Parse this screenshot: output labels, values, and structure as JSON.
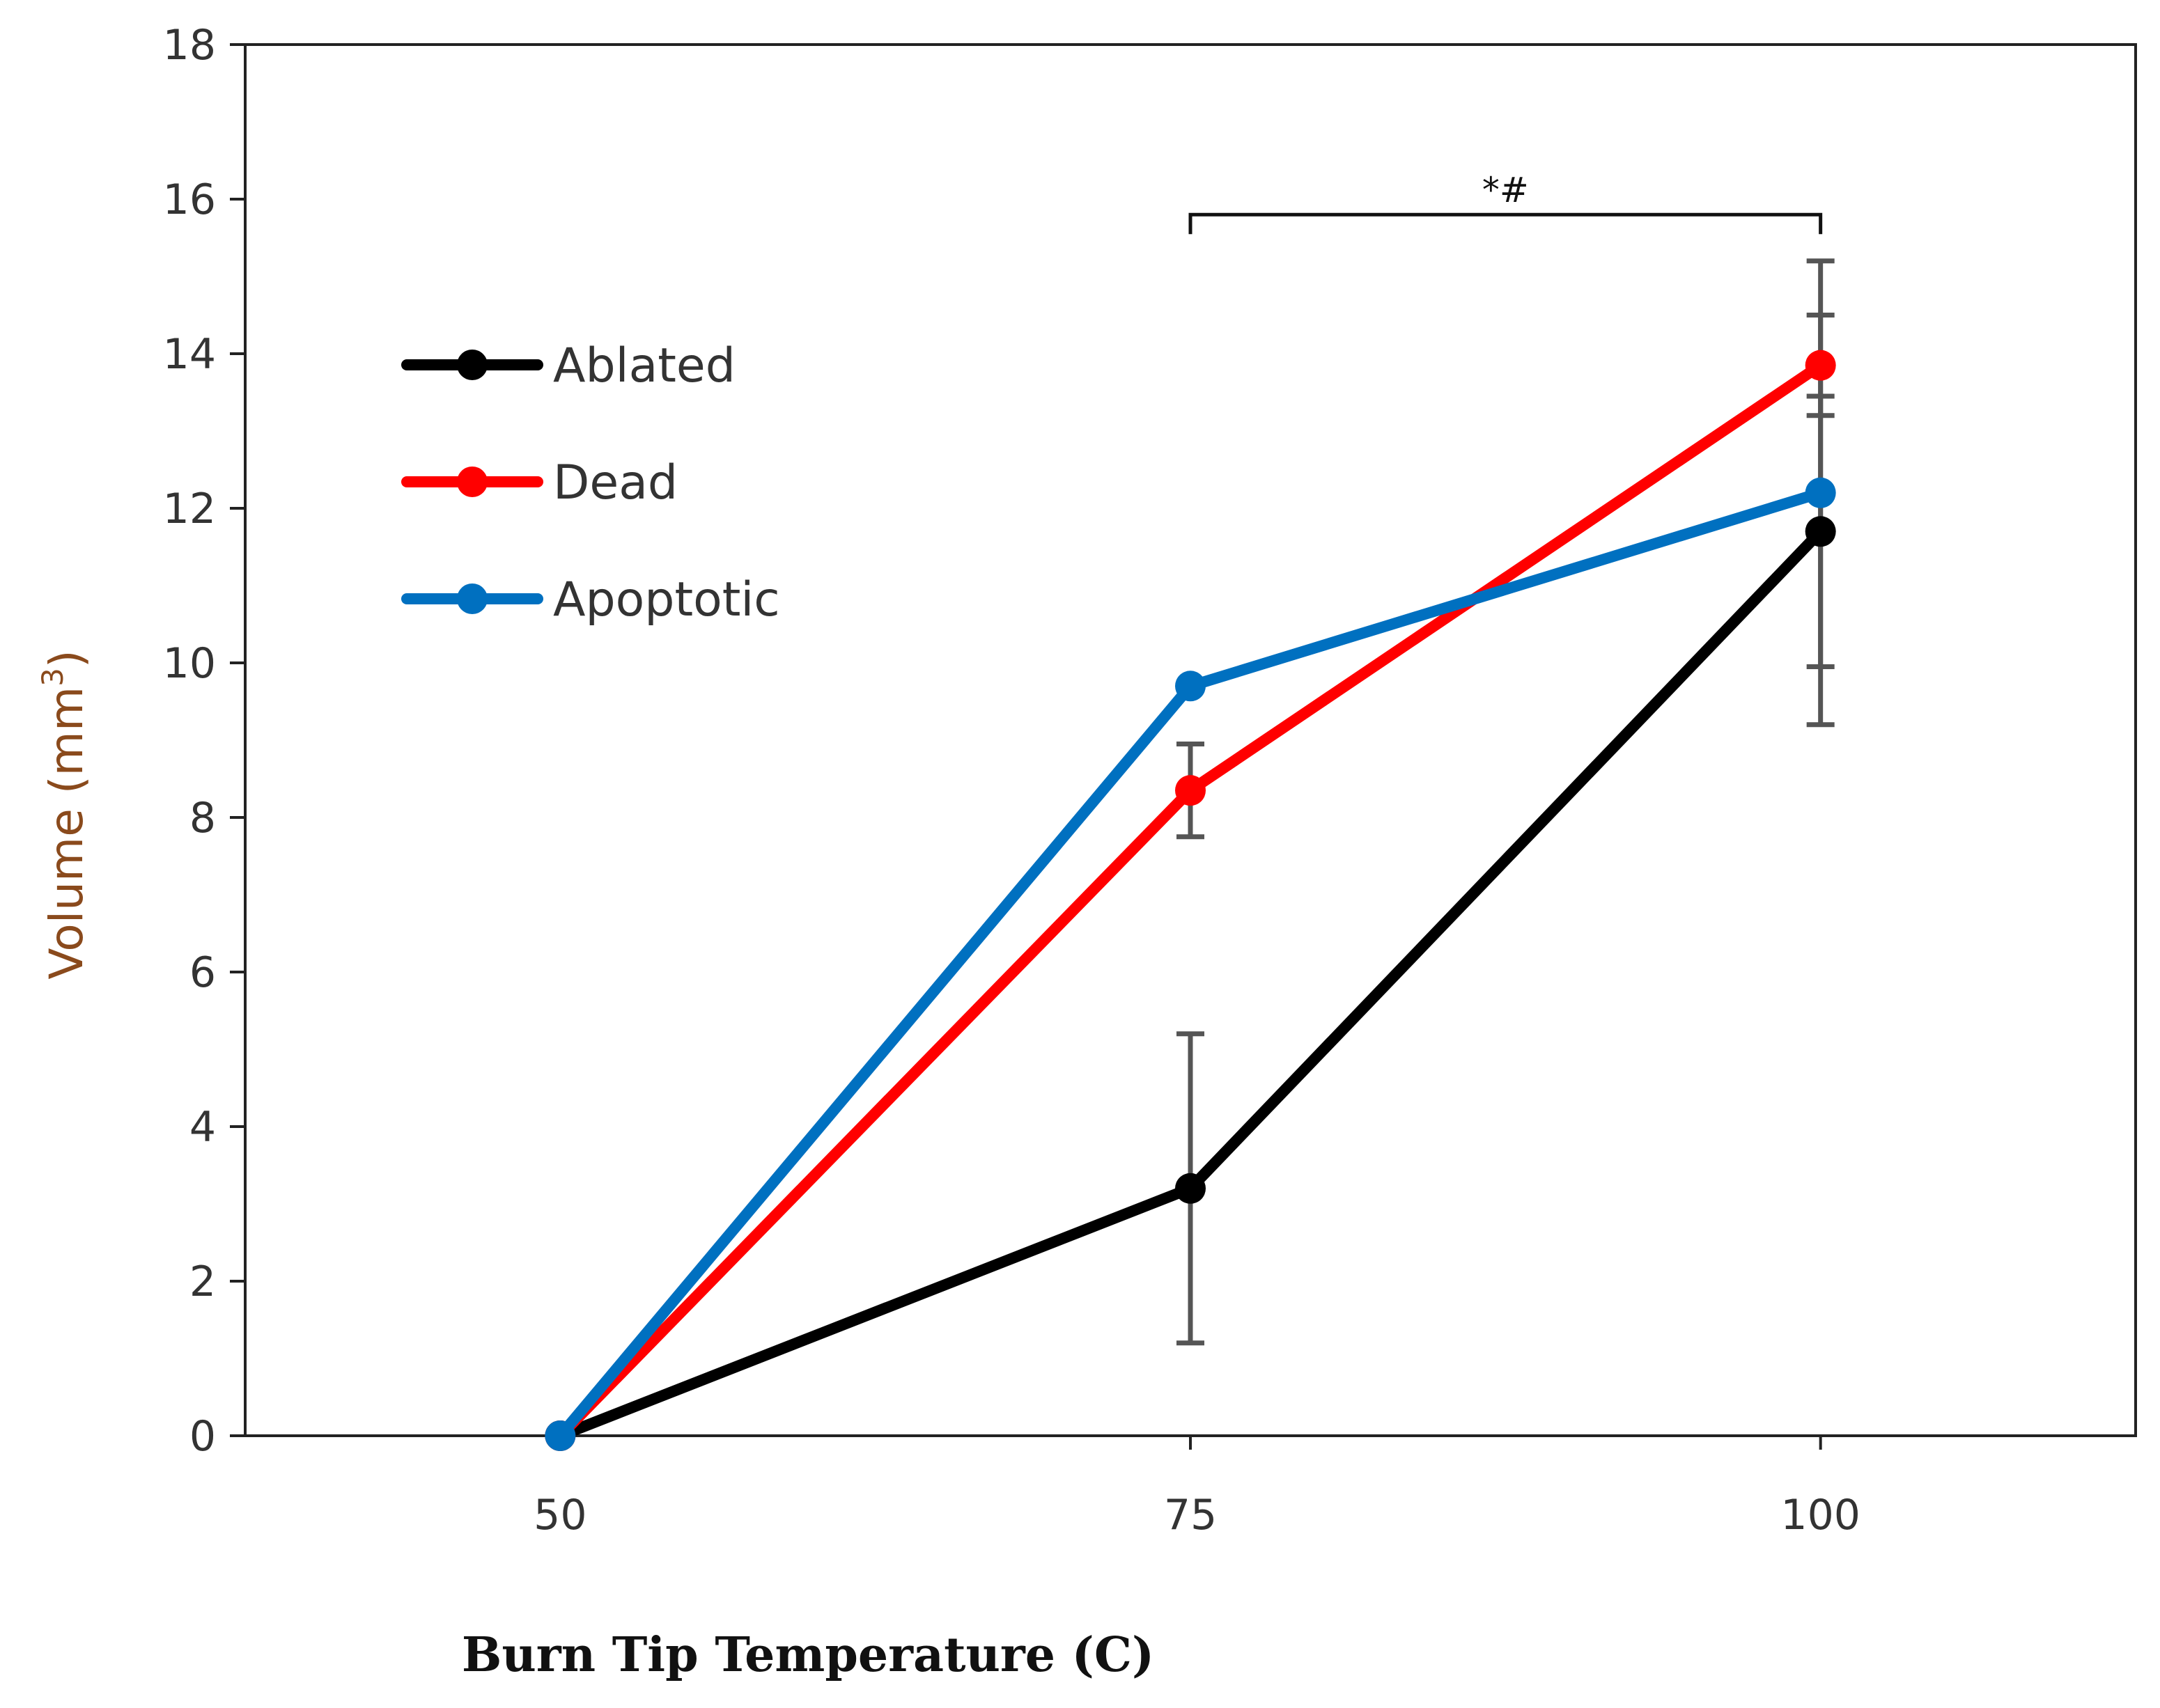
{
  "chart_data": {
    "type": "line",
    "title": "",
    "xlabel": "Burn Tip Temperature (C)",
    "ylabel": {
      "main": "Volume (mm",
      "superscript": "3",
      "close": ")"
    },
    "x": [
      50,
      75,
      100
    ],
    "x_tick_labels": [
      "50",
      "75",
      "100"
    ],
    "xlim": [
      37.5,
      112.5
    ],
    "ylim": [
      0,
      18
    ],
    "y_ticks": [
      0,
      2,
      4,
      6,
      8,
      10,
      12,
      14,
      16,
      18
    ],
    "y_tick_labels": [
      "0",
      "2",
      "4",
      "6",
      "8",
      "10",
      "12",
      "14",
      "16",
      "18"
    ],
    "grid": false,
    "legend_position": "upper-left",
    "series": [
      {
        "name": "Ablated",
        "color": "#000000",
        "values": [
          0,
          3.2,
          11.7
        ],
        "errors": [
          0,
          2.0,
          1.75
        ]
      },
      {
        "name": "Dead",
        "color": "#ff0000",
        "values": [
          0,
          8.35,
          13.85
        ],
        "errors": [
          0,
          0.6,
          0.65
        ]
      },
      {
        "name": "Apoptotic",
        "color": "#0070c0",
        "values": [
          0,
          9.7,
          12.2
        ],
        "errors": [
          0,
          0,
          3.0
        ]
      }
    ],
    "errorbar_color": "#555555",
    "significance": {
      "label": "*#",
      "from_x": 75,
      "to_x": 100,
      "y": 15.8
    }
  }
}
